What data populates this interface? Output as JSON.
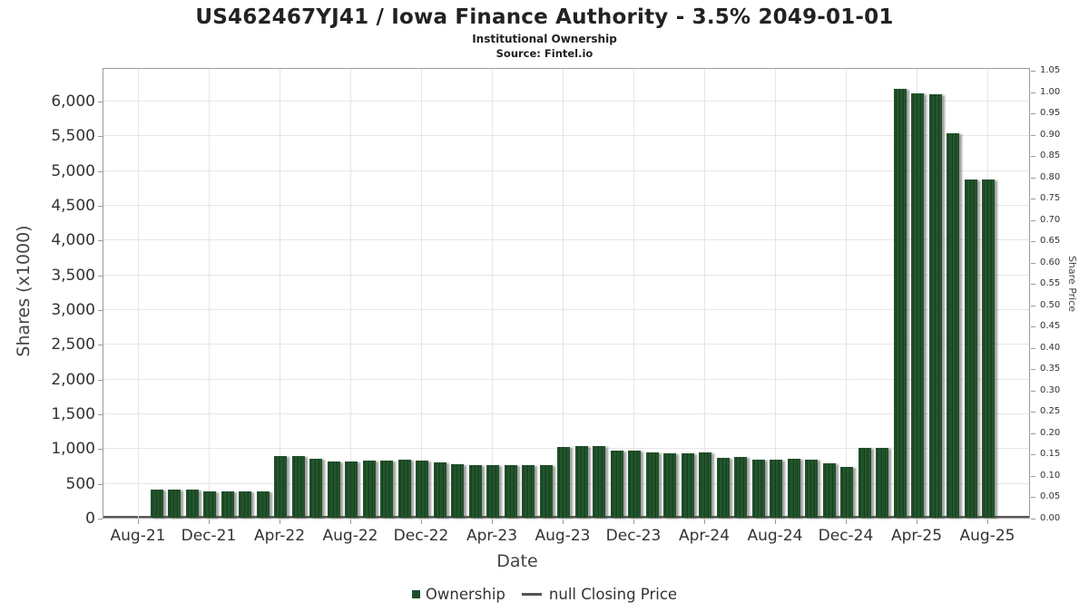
{
  "header": {
    "title": "US462467YJ41 / Iowa Finance Authority - 3.5% 2049-01-01",
    "subtitle": "Institutional Ownership",
    "source": "Source: Fintel.io"
  },
  "chart_data": {
    "type": "bar",
    "title": "US462467YJ41 / Iowa Finance Authority - 3.5% 2049-01-01",
    "subtitle": "Institutional Ownership",
    "source": "Source: Fintel.io",
    "xlabel": "Date",
    "ylabel": "Shares (x1000)",
    "ylabel_right": "Share Price",
    "unit": "thousands of shares",
    "grid": true,
    "legend_position": "bottom",
    "left_axis": {
      "min": 0,
      "max": 6500,
      "tick_step": 500,
      "tick_values": [
        0,
        500,
        1000,
        1500,
        2000,
        2500,
        3000,
        3500,
        4000,
        4500,
        5000,
        5500,
        6000
      ],
      "tick_labels": [
        "0",
        "500",
        "1,000",
        "1,500",
        "2,000",
        "2,500",
        "3,000",
        "3,500",
        "4,000",
        "4,500",
        "5,000",
        "5,500",
        "6,000"
      ]
    },
    "right_axis": {
      "min": 0,
      "max": 1.05,
      "tick_step": 0.05,
      "tick_labels": [
        "0.00",
        "0.05",
        "0.10",
        "0.15",
        "0.20",
        "0.25",
        "0.30",
        "0.35",
        "0.40",
        "0.45",
        "0.50",
        "0.55",
        "0.60",
        "0.65",
        "0.70",
        "0.75",
        "0.80",
        "0.85",
        "0.90",
        "0.95",
        "1.00",
        "1.05"
      ]
    },
    "x_tick_labels": [
      "Aug-21",
      "Dec-21",
      "Apr-22",
      "Aug-22",
      "Dec-22",
      "Apr-23",
      "Aug-23",
      "Dec-23",
      "Apr-24",
      "Aug-24",
      "Dec-24",
      "Apr-25",
      "Aug-25"
    ],
    "categories": [
      "Sep-21",
      "Oct-21",
      "Nov-21",
      "Dec-21",
      "Jan-22",
      "Feb-22",
      "Mar-22",
      "Apr-22",
      "May-22",
      "Jun-22",
      "Jul-22",
      "Aug-22",
      "Sep-22",
      "Oct-22",
      "Nov-22",
      "Dec-22",
      "Jan-23",
      "Feb-23",
      "Mar-23",
      "Apr-23",
      "May-23",
      "Jun-23",
      "Jul-23",
      "Aug-23",
      "Sep-23",
      "Oct-23",
      "Nov-23",
      "Dec-23",
      "Jan-24",
      "Feb-24",
      "Mar-24",
      "Apr-24",
      "May-24",
      "Jun-24",
      "Jul-24",
      "Aug-24",
      "Sep-24",
      "Oct-24",
      "Nov-24",
      "Dec-24",
      "Jan-25",
      "Feb-25",
      "Mar-25",
      "Apr-25",
      "May-25",
      "Jun-25",
      "Jul-25",
      "Aug-25"
    ],
    "series": [
      {
        "name": "Ownership",
        "color": "#1e4e28",
        "values": [
          405,
          405,
          405,
          380,
          380,
          380,
          380,
          885,
          885,
          850,
          810,
          810,
          820,
          820,
          830,
          820,
          800,
          775,
          755,
          755,
          760,
          755,
          755,
          1020,
          1030,
          1030,
          965,
          965,
          935,
          930,
          930,
          940,
          865,
          875,
          840,
          840,
          850,
          840,
          785,
          735,
          1005,
          1005,
          6170,
          6100,
          6090,
          5530,
          4860,
          4860
        ]
      },
      {
        "name": "null Closing Price",
        "color": "#555555",
        "values": []
      }
    ]
  },
  "legend": {
    "ownership_label": "Ownership",
    "closing_price_label": "null Closing Price"
  },
  "colors": {
    "bar_green": "#1e4e28",
    "gridline": "#e6e6e6",
    "plot_border": "#9a9a9a",
    "axis_line": "#5a5a5a",
    "text": "#333333"
  }
}
